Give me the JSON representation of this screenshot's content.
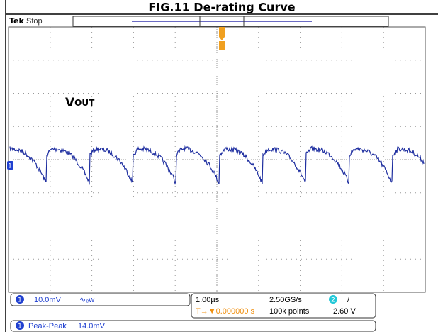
{
  "header": {
    "title": "FIG.11 De-rating Curve"
  },
  "scope": {
    "brand": "Tek",
    "status": "Stop",
    "signal_label": "V",
    "signal_label_sub": "OUT",
    "channel_marker": "1",
    "channel": {
      "number": "1",
      "scale": "10.0mV",
      "coupling": "∿ₑw"
    },
    "timebase": {
      "scale": "1.00µs",
      "sample_rate": "2.50GS/s",
      "trigger_pos": "T→▼0.000000 s",
      "record": "100k points"
    },
    "trigger": {
      "source": "2",
      "slope": "/",
      "level": "2.60 V"
    },
    "measurement": {
      "number": "1",
      "name": "Peak-Peak",
      "value": "14.0mV"
    }
  }
}
